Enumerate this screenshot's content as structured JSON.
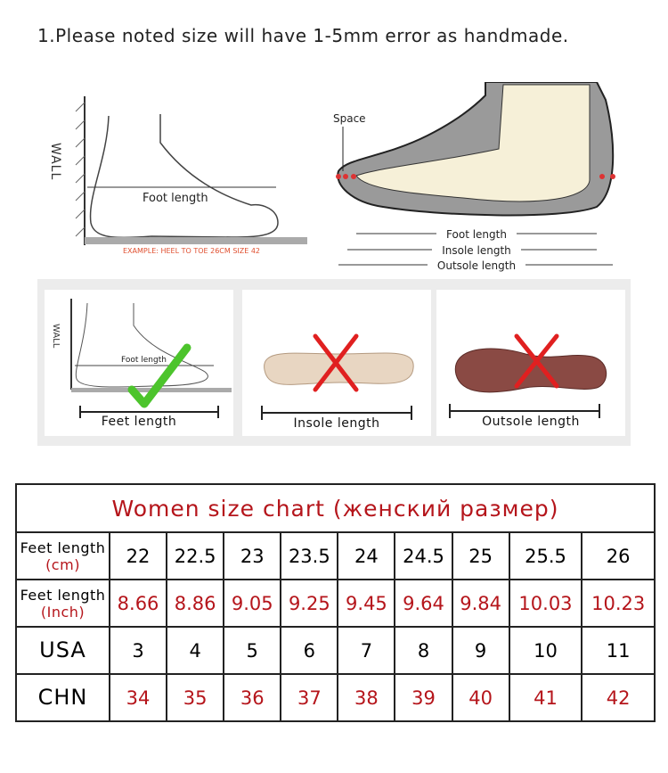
{
  "note": "1.Please noted size will have 1-5mm error as handmade.",
  "diagram_left": {
    "wall": "WALL",
    "foot_length": "Foot length",
    "example": "EXAMPLE: HEEL TO TOE 26CM SIZE 42"
  },
  "diagram_right": {
    "space": "Space",
    "foot_length": "Foot length",
    "insole_length": "Insole length",
    "outsole_length": "Outsole length"
  },
  "cards": [
    {
      "label": "Feet length",
      "wall": "WALL",
      "inner": "Foot length",
      "mark": "check"
    },
    {
      "label": "Insole length",
      "mark": "cross"
    },
    {
      "label": "Outsole length",
      "mark": "cross"
    }
  ],
  "size_table": {
    "title": "Women size chart (женский размер)",
    "rows": [
      {
        "label": "Feet length",
        "unit": "(cm)",
        "values": [
          "22",
          "22.5",
          "23",
          "23.5",
          "24",
          "24.5",
          "25",
          "25.5",
          "26"
        ],
        "red": false
      },
      {
        "label": "Feet length",
        "unit": "(Inch)",
        "values": [
          "8.66",
          "8.86",
          "9.05",
          "9.25",
          "9.45",
          "9.64",
          "9.84",
          "10.03",
          "10.23"
        ],
        "red": true
      },
      {
        "label": "USA",
        "values": [
          "3",
          "4",
          "5",
          "6",
          "7",
          "8",
          "9",
          "10",
          "11"
        ],
        "red": false
      },
      {
        "label": "CHN",
        "values": [
          "34",
          "35",
          "36",
          "37",
          "38",
          "39",
          "40",
          "41",
          "42"
        ],
        "red": true
      }
    ]
  },
  "colors": {
    "accent_red": "#b5151b",
    "check_green": "#4cc42c",
    "cross_red": "#e02020"
  }
}
